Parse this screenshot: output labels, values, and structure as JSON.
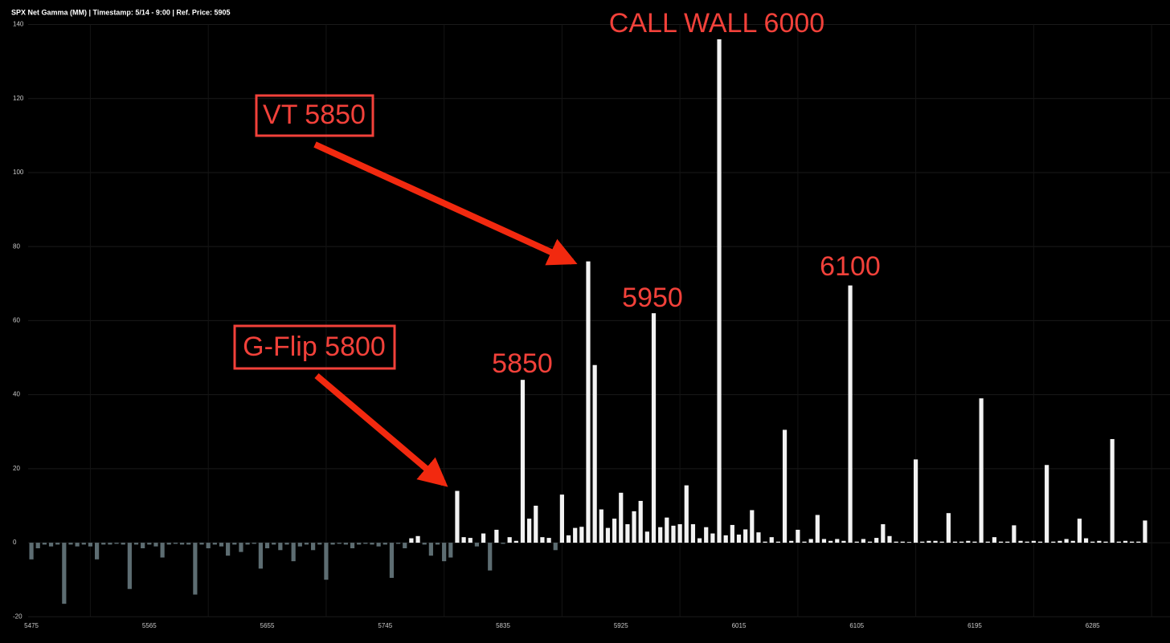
{
  "chart_data": {
    "type": "bar",
    "title": "SPX Net Gamma (MM) | Timestamp: 5/14 - 9:00  | Ref. Price: 5905",
    "color": "#f2f2f2",
    "negative_color": "#5d6d72",
    "grid": true,
    "ylim": [
      -20,
      140
    ],
    "yticks": [
      -20,
      0,
      20,
      40,
      60,
      80,
      100,
      120,
      140
    ],
    "annotations": [
      "CALL WALL 6000",
      "VT 5850",
      "5950",
      "6100",
      "5850",
      "G-Flip 5800"
    ],
    "categories": [
      "5475",
      null,
      null,
      null,
      null,
      null,
      null,
      null,
      null,
      null,
      null,
      null,
      null,
      null,
      null,
      null,
      null,
      null,
      "5565",
      null,
      null,
      null,
      null,
      null,
      null,
      null,
      null,
      null,
      null,
      null,
      null,
      null,
      null,
      null,
      null,
      null,
      "5655",
      null,
      null,
      null,
      null,
      null,
      null,
      null,
      null,
      null,
      null,
      null,
      null,
      null,
      null,
      null,
      null,
      null,
      "5745",
      null,
      null,
      null,
      null,
      null,
      null,
      null,
      null,
      null,
      null,
      null,
      null,
      null,
      null,
      null,
      null,
      null,
      "5835",
      null,
      null,
      null,
      null,
      null,
      null,
      null,
      null,
      null,
      null,
      null,
      null,
      null,
      null,
      null,
      null,
      null,
      "5925",
      null,
      null,
      null,
      null,
      null,
      null,
      null,
      null,
      null,
      null,
      null,
      null,
      null,
      null,
      null,
      null,
      null,
      "6015",
      null,
      null,
      null,
      null,
      null,
      null,
      null,
      null,
      null,
      null,
      null,
      null,
      null,
      null,
      null,
      null,
      null,
      "6105",
      null,
      null,
      null,
      null,
      null,
      null,
      null,
      null,
      null,
      null,
      null,
      null,
      null,
      null,
      null,
      null,
      null,
      "6195",
      null,
      null,
      null,
      null,
      null,
      null,
      null,
      null,
      null,
      null,
      null,
      null,
      null,
      null,
      null,
      null,
      null,
      "6285",
      null,
      null,
      null,
      null,
      null,
      null,
      null,
      null
    ],
    "values": [
      -4.5,
      -1.5,
      -0.5,
      -1,
      -0.5,
      -16.5,
      -0.5,
      -1,
      -0.5,
      -1,
      -4.5,
      -0.5,
      -0.5,
      -0.3,
      -0.5,
      -12.5,
      -0.5,
      -1.5,
      -0.5,
      -1,
      -4,
      -0.5,
      -0.3,
      -0.5,
      -0.5,
      -14,
      -0.5,
      -1.5,
      -0.5,
      -1,
      -3.5,
      -0.5,
      -2.5,
      -0.5,
      -0.3,
      -7,
      -1.5,
      -0.5,
      -2,
      -0.5,
      -5,
      -1,
      -0.5,
      -2,
      -0.5,
      -10,
      -0.5,
      -0.3,
      -0.5,
      -1.5,
      -0.5,
      -0.3,
      -0.5,
      -1,
      -0.5,
      -9.5,
      -0.3,
      -1.5,
      1.2,
      1.8,
      -0.5,
      -3.5,
      -0.5,
      -5,
      -4,
      14,
      1.5,
      1.3,
      -1,
      2.5,
      -7.5,
      3.5,
      -0.3,
      1.5,
      0.5,
      44,
      6.5,
      10,
      1.5,
      1.3,
      -2,
      13,
      2,
      4,
      4.3,
      76,
      48,
      9,
      4,
      6.5,
      13.5,
      5,
      8.5,
      11.3,
      3,
      62,
      4.2,
      6.8,
      4.6,
      5,
      15.5,
      5,
      1.2,
      4.2,
      2.5,
      136,
      2,
      4.8,
      2.2,
      3.6,
      8.8,
      2.8,
      0.3,
      1.5,
      0.3,
      30.5,
      0.5,
      3.5,
      0.3,
      1,
      7.5,
      1,
      0.5,
      1,
      0.5,
      69.5,
      0.3,
      1,
      0.3,
      1.3,
      5,
      1.8,
      0.3,
      0.3,
      0.2,
      22.5,
      0.3,
      0.5,
      0.5,
      0.3,
      8,
      0.3,
      0.3,
      0.5,
      0.3,
      39,
      0.3,
      1.5,
      0.3,
      0.3,
      4.7,
      0.5,
      0.3,
      0.5,
      0.3,
      21,
      0.3,
      0.5,
      1,
      0.5,
      6.5,
      1.2,
      0.3,
      0.5,
      0.3,
      28,
      0.3,
      0.5,
      0.3,
      0.3,
      6
    ]
  }
}
